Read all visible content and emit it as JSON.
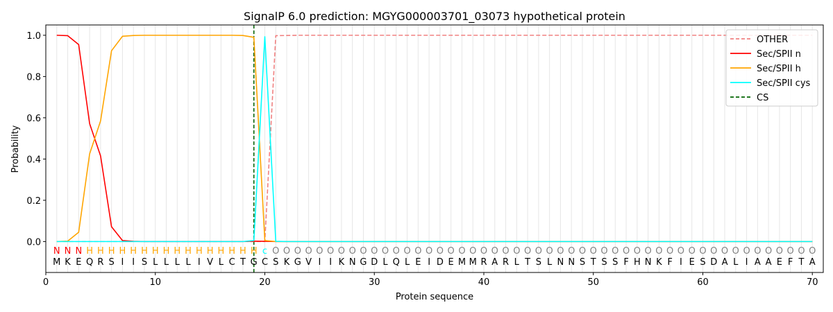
{
  "chart_data": {
    "type": "line",
    "title": "SignalP 6.0 prediction: MGYG000003701_03073 hypothetical protein",
    "xlabel": "Protein sequence",
    "ylabel": "Probability",
    "xlim": [
      0,
      71
    ],
    "ylim": [
      -0.15,
      1.05
    ],
    "x_ticks": [
      0,
      10,
      20,
      30,
      40,
      50,
      60,
      70
    ],
    "y_ticks": [
      0.0,
      0.2,
      0.4,
      0.6,
      0.8,
      1.0
    ],
    "y_tick_labels": [
      "0.0",
      "0.2",
      "0.4",
      "0.6",
      "0.8",
      "1.0"
    ],
    "grid": "vertical lines at each residue",
    "legend_position": "top-right",
    "sequence": [
      "M",
      "K",
      "E",
      "Q",
      "R",
      "S",
      "I",
      "I",
      "S",
      "L",
      "L",
      "L",
      "L",
      "I",
      "V",
      "L",
      "C",
      "T",
      "G",
      "C",
      "S",
      "K",
      "G",
      "V",
      "I",
      "I",
      "K",
      "N",
      "G",
      "D",
      "L",
      "Q",
      "L",
      "E",
      "I",
      "D",
      "E",
      "M",
      "M",
      "R",
      "A",
      "R",
      "L",
      "T",
      "S",
      "L",
      "N",
      "N",
      "S",
      "T",
      "S",
      "S",
      "F",
      "H",
      "N",
      "K",
      "F",
      "I",
      "E",
      "S",
      "D",
      "A",
      "L",
      "I",
      "A",
      "A",
      "E",
      "F",
      "T",
      "A"
    ],
    "region_labels": [
      "N",
      "N",
      "N",
      "H",
      "H",
      "H",
      "H",
      "H",
      "H",
      "H",
      "H",
      "H",
      "H",
      "H",
      "H",
      "H",
      "H",
      "H",
      "H",
      "c",
      "O",
      "O",
      "O",
      "O",
      "O",
      "O",
      "O",
      "O",
      "O",
      "O",
      "O",
      "O",
      "O",
      "O",
      "O",
      "O",
      "O",
      "O",
      "O",
      "O",
      "O",
      "O",
      "O",
      "O",
      "O",
      "O",
      "O",
      "O",
      "O",
      "O",
      "O",
      "O",
      "O",
      "O",
      "O",
      "O",
      "O",
      "O",
      "O",
      "O",
      "O",
      "O",
      "O",
      "O",
      "O",
      "O",
      "O",
      "O",
      "O",
      "O"
    ],
    "region_colors": {
      "N": "#ff0000",
      "H": "#ffa500",
      "c": "#00ffff",
      "O": "#808080"
    },
    "cleavage_site": 19,
    "series": [
      {
        "name": "OTHER",
        "color": "#f08080",
        "dash": "dashed",
        "values": [
          0,
          0,
          0,
          0,
          0,
          0,
          0,
          0,
          0,
          0,
          0,
          0,
          0,
          0,
          0,
          0,
          0,
          0,
          0,
          0,
          0.998,
          0.999,
          1,
          1,
          1,
          1,
          1,
          1,
          1,
          1,
          1,
          1,
          1,
          1,
          1,
          1,
          1,
          1,
          1,
          1,
          1,
          1,
          1,
          1,
          1,
          1,
          1,
          1,
          1,
          1,
          1,
          1,
          1,
          1,
          1,
          1,
          1,
          1,
          1,
          1,
          1,
          1,
          1,
          1,
          1,
          1,
          1,
          1,
          1,
          1
        ]
      },
      {
        "name": "Sec/SPII n",
        "color": "#ff0000",
        "dash": "solid",
        "values": [
          1.0,
          0.998,
          0.955,
          0.572,
          0.415,
          0.072,
          0.005,
          0.001,
          0,
          0,
          0,
          0,
          0,
          0,
          0,
          0,
          0,
          0,
          0.002,
          0.001,
          0,
          0,
          0,
          0,
          0,
          0,
          0,
          0,
          0,
          0,
          0,
          0,
          0,
          0,
          0,
          0,
          0,
          0,
          0,
          0,
          0,
          0,
          0,
          0,
          0,
          0,
          0,
          0,
          0,
          0,
          0,
          0,
          0,
          0,
          0,
          0,
          0,
          0,
          0,
          0,
          0,
          0,
          0,
          0,
          0,
          0,
          0,
          0,
          0,
          0
        ]
      },
      {
        "name": "Sec/SPII h",
        "color": "#ffa500",
        "dash": "solid",
        "values": [
          0,
          0.002,
          0.045,
          0.425,
          0.585,
          0.925,
          0.995,
          0.999,
          1,
          1,
          1,
          1,
          1,
          1,
          1,
          1,
          1,
          0.999,
          0.99,
          0.005,
          0,
          0,
          0,
          0,
          0,
          0,
          0,
          0,
          0,
          0,
          0,
          0,
          0,
          0,
          0,
          0,
          0,
          0,
          0,
          0,
          0,
          0,
          0,
          0,
          0,
          0,
          0,
          0,
          0,
          0,
          0,
          0,
          0,
          0,
          0,
          0,
          0,
          0,
          0,
          0,
          0,
          0,
          0,
          0,
          0,
          0,
          0,
          0,
          0,
          0
        ]
      },
      {
        "name": "Sec/SPII cys",
        "color": "#00ffff",
        "dash": "solid",
        "values": [
          0,
          0,
          0,
          0,
          0,
          0,
          0,
          0,
          0,
          0,
          0,
          0,
          0,
          0,
          0,
          0,
          0,
          0,
          0.005,
          0.993,
          0.001,
          0,
          0,
          0,
          0,
          0,
          0,
          0,
          0,
          0,
          0,
          0,
          0,
          0,
          0,
          0,
          0,
          0,
          0,
          0,
          0,
          0,
          0,
          0,
          0,
          0,
          0,
          0,
          0,
          0,
          0,
          0,
          0,
          0,
          0,
          0,
          0,
          0,
          0,
          0,
          0,
          0,
          0,
          0,
          0,
          0,
          0,
          0,
          0,
          0
        ]
      },
      {
        "name": "CS",
        "color": "#006400",
        "dash": "dashed",
        "values": []
      }
    ]
  }
}
